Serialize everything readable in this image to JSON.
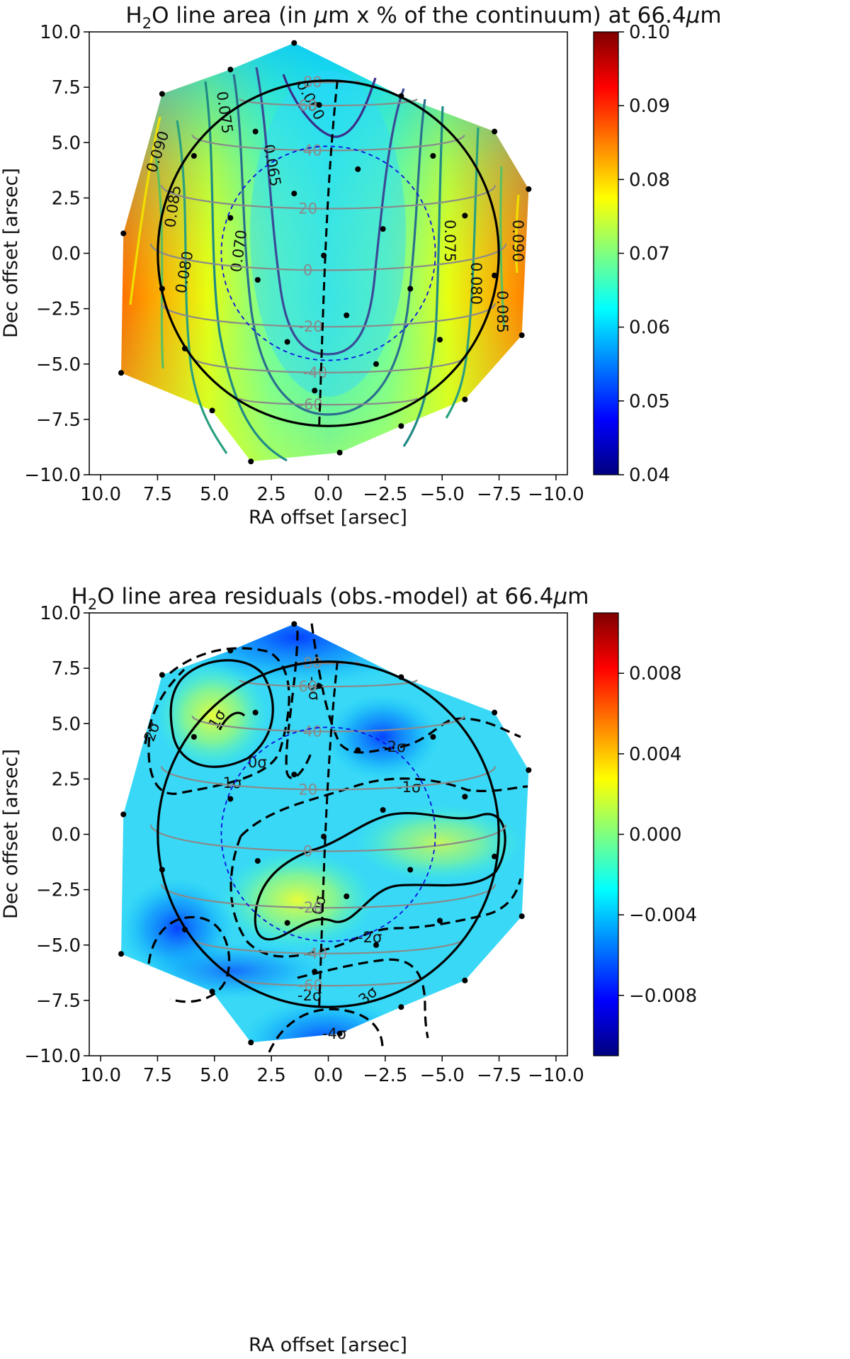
{
  "chart_data": [
    {
      "type": "heatmap",
      "title_prefix": "H",
      "title_sub": "2",
      "title_rest": "O line area (in ",
      "title_mu": "μ",
      "title_end": "m x % of the continuum) at 66.4",
      "title_unit_mu": "μ",
      "title_unit_m": "m",
      "xlabel": "RA offset [arsec]",
      "ylabel": "Dec offset [arsec]",
      "xlim": [
        10.5,
        -10.5
      ],
      "ylim": [
        -10,
        10
      ],
      "xticks": [
        10.0,
        7.5,
        5.0,
        2.5,
        0.0,
        -2.5,
        -5.0,
        -7.5,
        -10.0
      ],
      "xtick_labels": [
        "10.0",
        "7.5",
        "5.0",
        "2.5",
        "0.0",
        "−2.5",
        "−5.0",
        "−7.5",
        "−10.0"
      ],
      "yticks": [
        10.0,
        7.5,
        5.0,
        2.5,
        0.0,
        -2.5,
        -5.0,
        -7.5,
        -10.0
      ],
      "ytick_labels": [
        "10.0",
        "7.5",
        "5.0",
        "2.5",
        "0.0",
        "−2.5",
        "−5.0",
        "−7.5",
        "−10.0"
      ],
      "colorbar": {
        "range": [
          0.04,
          0.1
        ],
        "ticks": [
          0.1,
          0.09,
          0.08,
          0.07,
          0.06,
          0.05,
          0.04
        ],
        "tick_labels": [
          "0.10",
          "0.09",
          "0.08",
          "0.07",
          "0.06",
          "0.05",
          "0.04"
        ]
      },
      "contour_labels": [
        "0.060",
        "0.065",
        "0.070",
        "0.075",
        "0.080",
        "0.085",
        "0.090",
        "0.075",
        "0.080",
        "0.085",
        "0.090"
      ],
      "grid_labels": [
        "80",
        "60",
        "40",
        "20",
        "0",
        "-20",
        "-40",
        "-60"
      ],
      "planet_radius": 7.8,
      "inner_circle_radius": 4.7
    },
    {
      "type": "heatmap",
      "title_prefix": "H",
      "title_sub": "2",
      "title_rest": "O line area residuals (obs.-model) at 66.4",
      "title_unit_mu": "μ",
      "title_unit_m": "m",
      "xlabel": "RA offset [arsec]",
      "ylabel": "Dec offset [arsec]",
      "xlim": [
        10.5,
        -10.5
      ],
      "ylim": [
        -10,
        10
      ],
      "xticks": [
        10.0,
        7.5,
        5.0,
        2.5,
        0.0,
        -2.5,
        -5.0,
        -7.5,
        -10.0
      ],
      "xtick_labels": [
        "10.0",
        "7.5",
        "5.0",
        "2.5",
        "0.0",
        "−2.5",
        "−5.0",
        "−7.5",
        "−10.0"
      ],
      "yticks": [
        10.0,
        7.5,
        5.0,
        2.5,
        0.0,
        -2.5,
        -5.0,
        -7.5,
        -10.0
      ],
      "ytick_labels": [
        "10.0",
        "7.5",
        "5.0",
        "2.5",
        "0.0",
        "−2.5",
        "−5.0",
        "−7.5",
        "−10.0"
      ],
      "colorbar": {
        "range": [
          -0.011,
          0.011
        ],
        "ticks": [
          0.008,
          0.004,
          0.0,
          -0.004,
          -0.008
        ],
        "tick_labels": [
          "0.008",
          "0.004",
          "0.000",
          "−0.004",
          "−0.008"
        ]
      },
      "contour_labels": [
        "1σ",
        "0σ",
        "-1σ",
        "-2σ",
        "-2σ",
        "-3σ",
        "-2σ",
        "-1σ",
        "0σ",
        "-2σ",
        "-3σ",
        "-4σ"
      ],
      "grid_labels": [
        "80",
        "60",
        "40",
        "20",
        "0",
        "-20",
        "-40",
        "-60"
      ],
      "planet_radius": 7.8,
      "inner_circle_radius": 4.7
    }
  ],
  "observation_points": [
    [
      1.5,
      9.5
    ],
    [
      4.3,
      8.3
    ],
    [
      7.3,
      7.2
    ],
    [
      -3.2,
      7.1
    ],
    [
      0.4,
      6.7
    ],
    [
      3.2,
      5.5
    ],
    [
      -7.3,
      5.5
    ],
    [
      5.9,
      4.4
    ],
    [
      -4.6,
      4.4
    ],
    [
      -1.3,
      3.8
    ],
    [
      1.5,
      2.7
    ],
    [
      -8.8,
      2.9
    ],
    [
      4.3,
      1.6
    ],
    [
      -6.0,
      1.7
    ],
    [
      -2.4,
      1.1
    ],
    [
      9.0,
      0.9
    ],
    [
      0.2,
      -0.1
    ],
    [
      3.1,
      -1.2
    ],
    [
      -7.3,
      -1.0
    ],
    [
      7.3,
      -1.6
    ],
    [
      -3.6,
      -1.6
    ],
    [
      -0.8,
      -2.8
    ],
    [
      6.3,
      -4.3
    ],
    [
      1.8,
      -4.0
    ],
    [
      -4.9,
      -3.9
    ],
    [
      -8.5,
      -3.7
    ],
    [
      9.1,
      -5.4
    ],
    [
      -2.1,
      -5.0
    ],
    [
      0.6,
      -6.2
    ],
    [
      5.1,
      -7.1
    ],
    [
      -6.0,
      -6.6
    ],
    [
      -3.2,
      -7.8
    ],
    [
      3.4,
      -9.4
    ],
    [
      -0.5,
      -9.0
    ]
  ]
}
